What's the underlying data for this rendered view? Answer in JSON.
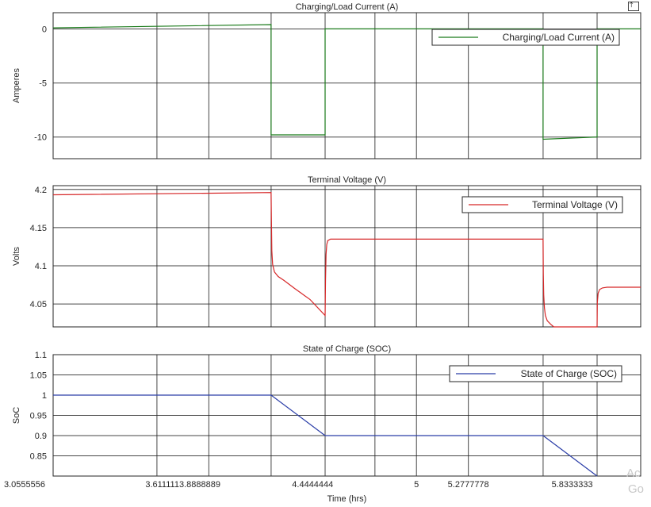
{
  "chart_data": [
    {
      "type": "line",
      "title": "Charging/Load Current (A)",
      "ylabel": "Amperes",
      "xlim": [
        3.0555556,
        6.2
      ],
      "ylim": [
        -12,
        1.5
      ],
      "yticks": [
        0,
        -5,
        -10
      ],
      "grid": true,
      "legend_position": "top-right",
      "series": [
        {
          "name": "Charging/Load Current (A)",
          "color": "#1a7a1a",
          "x": [
            3.0555556,
            4.2222222,
            4.2222222,
            4.5111111,
            4.5111111,
            5.6777778,
            5.6777778,
            5.9666667,
            5.9666667,
            6.2
          ],
          "y": [
            0.1,
            0.4,
            -9.8,
            -9.8,
            0,
            0,
            -10.2,
            -10.0,
            0,
            0
          ]
        }
      ]
    },
    {
      "type": "line",
      "title": "Terminal Voltage (V)",
      "ylabel": "Volts",
      "xlim": [
        3.0555556,
        6.2
      ],
      "ylim": [
        4.02,
        4.205
      ],
      "yticks": [
        4.2,
        4.15,
        4.1,
        4.05
      ],
      "grid": true,
      "legend_position": "top-right",
      "series": [
        {
          "name": "Terminal Voltage (V)",
          "color": "#d62728",
          "x": [
            3.0555556,
            4.2222222,
            4.224,
            4.226,
            4.23,
            4.24,
            4.26,
            4.29,
            4.35,
            4.43,
            4.5111111,
            4.513,
            4.516,
            4.52,
            4.525,
            4.54,
            5.6777778,
            5.679,
            5.681,
            5.685,
            5.69,
            5.7,
            5.72,
            5.735,
            5.9666667,
            5.9666667,
            5.968,
            5.972,
            5.98,
            5.995,
            6.02,
            6.2
          ],
          "y": [
            4.193,
            4.196,
            4.16,
            4.12,
            4.102,
            4.092,
            4.086,
            4.081,
            4.07,
            4.056,
            4.035,
            4.08,
            4.115,
            4.128,
            4.133,
            4.135,
            4.135,
            4.09,
            4.062,
            4.045,
            4.035,
            4.028,
            4.023,
            4.02,
            4.02,
            4.02,
            4.052,
            4.064,
            4.069,
            4.071,
            4.072,
            4.072
          ]
        }
      ]
    },
    {
      "type": "line",
      "title": "State of Charge (SOC)",
      "ylabel": "SoC",
      "xlabel": "Time (hrs)",
      "xlim": [
        3.0555556,
        6.2
      ],
      "ylim": [
        0.8,
        1.1
      ],
      "yticks": [
        1.1,
        1.05,
        1,
        0.95,
        0.9,
        0.85
      ],
      "ytick_labels": [
        "1.1",
        "1.05",
        "1",
        "0.95",
        "0.9",
        "0.85"
      ],
      "grid": true,
      "legend_position": "top-right",
      "series": [
        {
          "name": "State of Charge (SOC)",
          "color": "#2b3ea8",
          "x": [
            3.0555556,
            4.2222222,
            4.5111111,
            5.6777778,
            5.9666667
          ],
          "y": [
            1.0,
            1.0,
            0.9,
            0.9,
            0.8
          ]
        }
      ]
    }
  ],
  "x_gridlines": [
    3.0555556,
    3.6111111,
    3.8888889,
    4.2222222,
    4.5111111,
    4.7777778,
    5.0,
    5.2777778,
    5.6777778,
    5.9666667
  ],
  "x_tick_labels": [
    {
      "x": 3.0555556,
      "label": "3.0555556"
    },
    {
      "x": 3.75,
      "label": "3.6111113.8888889"
    },
    {
      "x": 4.4444444,
      "label": "4.4444444"
    },
    {
      "x": 5.0,
      "label": "5"
    },
    {
      "x": 5.2777778,
      "label": "5.2777778"
    },
    {
      "x": 5.8333333,
      "label": "5.8333333"
    }
  ],
  "watermark": [
    "Ac",
    "Go"
  ],
  "corner_icon": "pin-icon"
}
